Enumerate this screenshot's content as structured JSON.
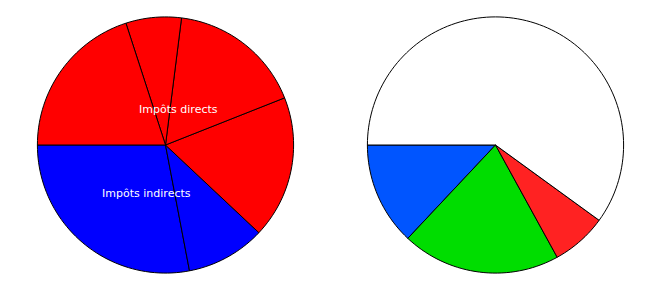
{
  "chart_data": [
    {
      "type": "pie",
      "values": [
        28,
        10,
        18,
        17,
        7,
        20
      ],
      "colors": [
        "#0000ff",
        "#0000ff",
        "#ff0000",
        "#ff0000",
        "#ff0000",
        "#ff0000"
      ],
      "annotations": [
        "Impôts directs",
        "Impôts indirects"
      ]
    },
    {
      "type": "pie",
      "values": [
        13,
        20,
        7,
        60
      ],
      "colors": [
        "#0055ff",
        "#00dd00",
        "#ff2222",
        "#ffffff"
      ]
    }
  ]
}
